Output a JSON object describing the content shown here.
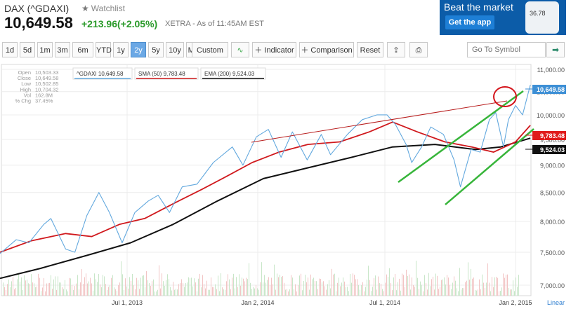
{
  "header": {
    "title": "DAX (^GDAXI)",
    "watchlist": "Watchlist",
    "price": "10,649.58",
    "change": "+213.96(+2.05%)",
    "exchange_time": "XETRA - As of 11:45AM EST"
  },
  "ad": {
    "headline": "Beat the market",
    "button": "Get the app",
    "phone_value": "36.78"
  },
  "toolbar": {
    "ranges": [
      "1d",
      "5d",
      "1m",
      "3m",
      "6m",
      "YTD",
      "1y",
      "2y",
      "5y",
      "10y",
      "Max"
    ],
    "active_range": "2y",
    "custom": "Custom",
    "indicator": "Indicator",
    "comparison": "Comparison",
    "reset": "Reset",
    "symbol_placeholder": "Go To Symbol"
  },
  "stats": {
    "labels": [
      "Open",
      "Close",
      "Low",
      "High",
      "Vol",
      "% Chg"
    ],
    "values": [
      "10,503.33",
      "10,649.58",
      "10,502.85",
      "10,704.32",
      "162.8M",
      "37.45%"
    ]
  },
  "chart_data": {
    "type": "line",
    "y_scale": "log",
    "ylim": [
      7000,
      11000
    ],
    "yticks": [
      "11,000.00",
      "10,500.00",
      "10,000.00",
      "9,500.00",
      "9,000.00",
      "8,500.00",
      "8,000.00",
      "7,500.00",
      "7,000.00"
    ],
    "ytick_values": [
      11000,
      10500,
      10000,
      9500,
      9000,
      8500,
      8000,
      7500,
      7000
    ],
    "xlim": [
      "2013-01-02",
      "2015-01-02"
    ],
    "xticks": [
      "Jul 1, 2013",
      "Jan 2, 2014",
      "Jul 1, 2014",
      "Jan 2, 2015"
    ],
    "xtick_dates": [
      "2013-07-01",
      "2014-01-02",
      "2014-07-01",
      "2015-01-02"
    ],
    "scale_label": "Linear",
    "series": [
      {
        "name": "^GDAXI",
        "legend": "^GDAXI 10,649.58",
        "last_label": "10,649.58",
        "color": "#62a8de",
        "points": [
          [
            "2013-01-02",
            7480
          ],
          [
            "2013-01-25",
            7700
          ],
          [
            "2013-02-12",
            7650
          ],
          [
            "2013-03-05",
            7950
          ],
          [
            "2013-03-15",
            8050
          ],
          [
            "2013-04-05",
            7550
          ],
          [
            "2013-04-18",
            7500
          ],
          [
            "2013-05-05",
            8100
          ],
          [
            "2013-05-22",
            8500
          ],
          [
            "2013-06-06",
            8150
          ],
          [
            "2013-06-24",
            7650
          ],
          [
            "2013-07-12",
            8150
          ],
          [
            "2013-07-31",
            8350
          ],
          [
            "2013-08-14",
            8450
          ],
          [
            "2013-08-30",
            8150
          ],
          [
            "2013-09-17",
            8600
          ],
          [
            "2013-10-08",
            8650
          ],
          [
            "2013-10-31",
            9050
          ],
          [
            "2013-11-27",
            9350
          ],
          [
            "2013-12-12",
            9000
          ],
          [
            "2013-12-31",
            9550
          ],
          [
            "2014-01-17",
            9700
          ],
          [
            "2014-02-04",
            9150
          ],
          [
            "2014-02-20",
            9650
          ],
          [
            "2014-03-13",
            9100
          ],
          [
            "2014-04-02",
            9600
          ],
          [
            "2014-04-15",
            9200
          ],
          [
            "2014-05-09",
            9600
          ],
          [
            "2014-05-30",
            9900
          ],
          [
            "2014-06-20",
            10000
          ],
          [
            "2014-07-04",
            10000
          ],
          [
            "2014-07-16",
            9800
          ],
          [
            "2014-07-31",
            9400
          ],
          [
            "2014-08-08",
            9050
          ],
          [
            "2014-08-22",
            9350
          ],
          [
            "2014-09-04",
            9750
          ],
          [
            "2014-09-22",
            9600
          ],
          [
            "2014-10-07",
            9100
          ],
          [
            "2014-10-16",
            8600
          ],
          [
            "2014-10-31",
            9300
          ],
          [
            "2014-11-13",
            9250
          ],
          [
            "2014-11-26",
            9900
          ],
          [
            "2014-12-05",
            10050
          ],
          [
            "2014-12-16",
            9350
          ],
          [
            "2014-12-23",
            9900
          ],
          [
            "2015-01-02",
            10200
          ],
          [
            "2015-01-12",
            10000
          ],
          [
            "2015-01-23",
            10649.58
          ]
        ]
      },
      {
        "name": "SMA (50)",
        "legend": "SMA (50) 9,783.48",
        "last_label": "9,783.48",
        "color": "#d0191d",
        "points": [
          [
            "2013-01-02",
            7500
          ],
          [
            "2013-02-15",
            7680
          ],
          [
            "2013-04-05",
            7800
          ],
          [
            "2013-05-12",
            7750
          ],
          [
            "2013-06-20",
            7950
          ],
          [
            "2013-07-26",
            8050
          ],
          [
            "2013-09-04",
            8300
          ],
          [
            "2013-10-14",
            8550
          ],
          [
            "2013-11-20",
            8800
          ],
          [
            "2013-12-25",
            9050
          ],
          [
            "2014-02-01",
            9250
          ],
          [
            "2014-03-14",
            9400
          ],
          [
            "2014-04-28",
            9450
          ],
          [
            "2014-06-09",
            9650
          ],
          [
            "2014-07-12",
            9850
          ],
          [
            "2014-08-16",
            9650
          ],
          [
            "2014-09-24",
            9450
          ],
          [
            "2014-11-01",
            9350
          ],
          [
            "2014-12-02",
            9250
          ],
          [
            "2015-01-02",
            9450
          ],
          [
            "2015-01-23",
            9783.48
          ]
        ]
      },
      {
        "name": "EMA (200)",
        "legend": "EMA (200) 9,524.03",
        "last_label": "9,524.03",
        "color": "#111111",
        "points": [
          [
            "2013-01-02",
            7100
          ],
          [
            "2013-02-28",
            7250
          ],
          [
            "2013-05-05",
            7450
          ],
          [
            "2013-07-06",
            7650
          ],
          [
            "2013-09-04",
            7950
          ],
          [
            "2013-11-06",
            8350
          ],
          [
            "2014-01-10",
            8750
          ],
          [
            "2014-03-14",
            8950
          ],
          [
            "2014-05-15",
            9150
          ],
          [
            "2014-07-12",
            9350
          ],
          [
            "2014-09-10",
            9400
          ],
          [
            "2014-11-06",
            9300
          ],
          [
            "2014-12-12",
            9350
          ],
          [
            "2015-01-23",
            9524.03
          ]
        ]
      }
    ]
  }
}
